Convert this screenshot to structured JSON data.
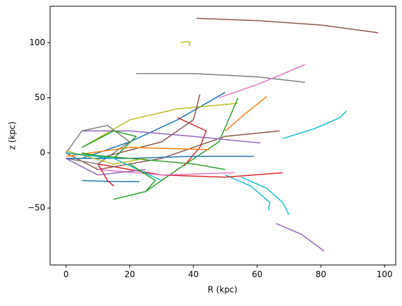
{
  "chart_data": {
    "type": "line",
    "x_label": "R (kpc)",
    "y_label": "z (kpc)",
    "xlim": [
      -5,
      103.5
    ],
    "ylim": [
      -101.6,
      133
    ],
    "xticks": [
      0,
      20,
      40,
      60,
      80,
      100
    ],
    "yticks": [
      {
        "value": -50,
        "label": "−50"
      },
      0,
      50,
      100
    ],
    "series": [
      {
        "color": "#8c564b",
        "x": [
          41,
          60,
          80,
          98
        ],
        "values": [
          122,
          120,
          116,
          109
        ]
      },
      {
        "color": "#bcbd22",
        "x": [
          36,
          38,
          39,
          38.5
        ],
        "values": [
          100,
          101,
          100,
          97
        ]
      },
      {
        "color": "#7f7f7f",
        "x": [
          22,
          40,
          60,
          75
        ],
        "values": [
          72,
          72,
          69,
          64
        ]
      },
      {
        "color": "#e377c2",
        "x": [
          48,
          60,
          75
        ],
        "values": [
          50,
          62,
          80
        ]
      },
      {
        "color": "#17becf",
        "x": [
          68,
          78,
          86,
          88
        ],
        "values": [
          13,
          22,
          32,
          38
        ]
      },
      {
        "color": "#9467bd",
        "x": [
          66,
          74,
          81
        ],
        "values": [
          -64,
          -74,
          -89
        ]
      },
      {
        "color": "#17becf",
        "x": [
          55,
          63,
          68,
          70
        ],
        "values": [
          -22,
          -32,
          -45,
          -56
        ]
      },
      {
        "color": "#17becf",
        "x": [
          50,
          58,
          64,
          63.5
        ],
        "values": [
          -20,
          -30,
          -45,
          -52
        ]
      },
      {
        "color": "#ff7f0e",
        "x": [
          50,
          56,
          63
        ],
        "values": [
          20,
          35,
          51
        ]
      },
      {
        "color": "#1f77b4",
        "x": [
          5,
          20,
          35,
          50
        ],
        "values": [
          -5,
          10,
          30,
          55
        ]
      },
      {
        "color": "#bcbd22",
        "x": [
          5,
          20,
          35,
          54
        ],
        "values": [
          5,
          30,
          40,
          45
        ]
      },
      {
        "color": "#2ca02c",
        "x": [
          15,
          25,
          35,
          48,
          54
        ],
        "values": [
          -42,
          -35,
          -15,
          10,
          50
        ]
      },
      {
        "color": "#d62728",
        "x": [
          10,
          30,
          50,
          68
        ],
        "values": [
          -10,
          -20,
          -22,
          -18
        ]
      },
      {
        "color": "#8c564b",
        "x": [
          0,
          10,
          30,
          50,
          67
        ],
        "values": [
          0,
          -15,
          -5,
          15,
          20
        ]
      },
      {
        "color": "#9467bd",
        "x": [
          5,
          20,
          40,
          61
        ],
        "values": [
          20,
          20,
          15,
          9
        ]
      },
      {
        "color": "#d62728",
        "x": [
          35,
          44,
          42,
          37
        ],
        "values": [
          32,
          20,
          5,
          -12
        ]
      },
      {
        "color": "#8c564b",
        "x": [
          42,
          40,
          30,
          10
        ],
        "values": [
          53,
          30,
          10,
          -5
        ]
      },
      {
        "color": "#7f7f7f",
        "x": [
          0,
          5,
          13,
          20,
          10,
          0
        ],
        "values": [
          0,
          20,
          25,
          10,
          -10,
          -5
        ]
      },
      {
        "color": "#1f77b4",
        "x": [
          5,
          15,
          23
        ],
        "values": [
          -25,
          -26,
          -26
        ]
      },
      {
        "color": "#1f77b4",
        "x": [
          0,
          20,
          40,
          59
        ],
        "values": [
          -5,
          -5,
          -3,
          -3
        ]
      },
      {
        "color": "#e377c2",
        "x": [
          10,
          30,
          53
        ],
        "values": [
          -15,
          -20,
          -18
        ]
      },
      {
        "color": "#2ca02c",
        "x": [
          0,
          20,
          40,
          50
        ],
        "values": [
          0,
          -5,
          -10,
          -15
        ]
      },
      {
        "color": "#ff7f0e",
        "x": [
          0,
          20,
          45
        ],
        "values": [
          -3,
          5,
          3
        ]
      },
      {
        "color": "#2ca02c",
        "x": [
          5,
          15,
          22,
          15,
          5
        ],
        "values": [
          5,
          20,
          15,
          -5,
          0
        ]
      },
      {
        "color": "#d62728",
        "x": [
          10,
          13,
          15
        ],
        "values": [
          -10,
          -25,
          -30
        ]
      },
      {
        "color": "#bcbd22",
        "x": [
          0,
          15,
          25
        ],
        "values": [
          2,
          -10,
          -5
        ]
      },
      {
        "color": "#9467bd",
        "x": [
          0,
          10,
          25
        ],
        "values": [
          -5,
          -20,
          -15
        ]
      },
      {
        "color": "#17becf",
        "x": [
          0,
          15,
          30
        ],
        "values": [
          0,
          -5,
          -25
        ]
      },
      {
        "color": "#2ca02c",
        "x": [
          20,
          28,
          25
        ],
        "values": [
          -10,
          -25,
          -35
        ]
      }
    ]
  }
}
